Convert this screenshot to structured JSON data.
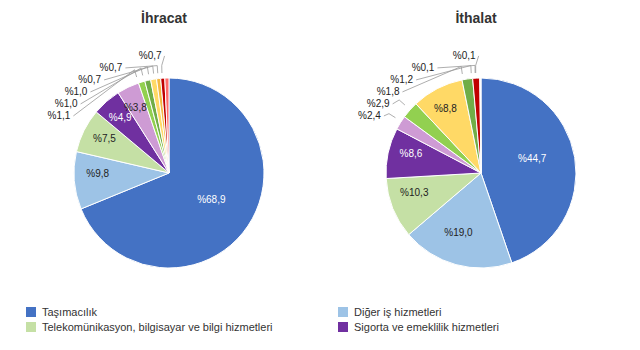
{
  "chart_data": [
    {
      "type": "pie",
      "title": "İhracat",
      "categories": [
        "Taşımacılık",
        null,
        "Telekomünikasyon, bilgisayar ve bilgi hizmetleri",
        null,
        null,
        null,
        null,
        null,
        null,
        null,
        null
      ],
      "values": [
        68.9,
        9.8,
        7.5,
        4.9,
        3.8,
        1.1,
        1.0,
        1.0,
        0.7,
        0.7,
        0.7
      ],
      "value_labels": [
        "%68,9",
        "%9,8",
        "%7,5",
        "%4,9",
        "%3,8",
        "%1,1",
        "%1,0",
        "%1,0",
        "%0,7",
        "%0,7",
        "%0,7"
      ],
      "colors": [
        "#4472C4",
        "#9DC3E6",
        "#C5E0A5",
        "#7030A0",
        "#CE9BD4",
        "#92D050",
        "#70AD47",
        "#FFD966",
        "#F4B942",
        "#C00000",
        "#FF6B6B"
      ],
      "data_labels": true,
      "legend": "bottom"
    },
    {
      "type": "pie",
      "title": "İthalat",
      "categories": [
        null,
        "Diğer iş hizmetleri",
        null,
        "Sigorta ve emeklilik hizmetleri",
        null,
        null,
        null,
        null,
        null,
        null,
        null
      ],
      "values": [
        44.7,
        19.0,
        10.3,
        8.6,
        2.4,
        2.9,
        8.8,
        1.8,
        1.2,
        0.1,
        0.1
      ],
      "value_labels": [
        "%44,7",
        "%19,0",
        "%10,3",
        "%8,6",
        "%2,4",
        "%2,9",
        "%8,8",
        "%1,8",
        "%1,2",
        "%0,1",
        "%0,1"
      ],
      "colors": [
        "#4472C4",
        "#9DC3E6",
        "#C5E0A5",
        "#7030A0",
        "#CE9BD4",
        "#92D050",
        "#FFD966",
        "#70AD47",
        "#C00000",
        "#FF6B6B",
        "#808080"
      ],
      "data_labels": true,
      "legend": "bottom"
    }
  ]
}
